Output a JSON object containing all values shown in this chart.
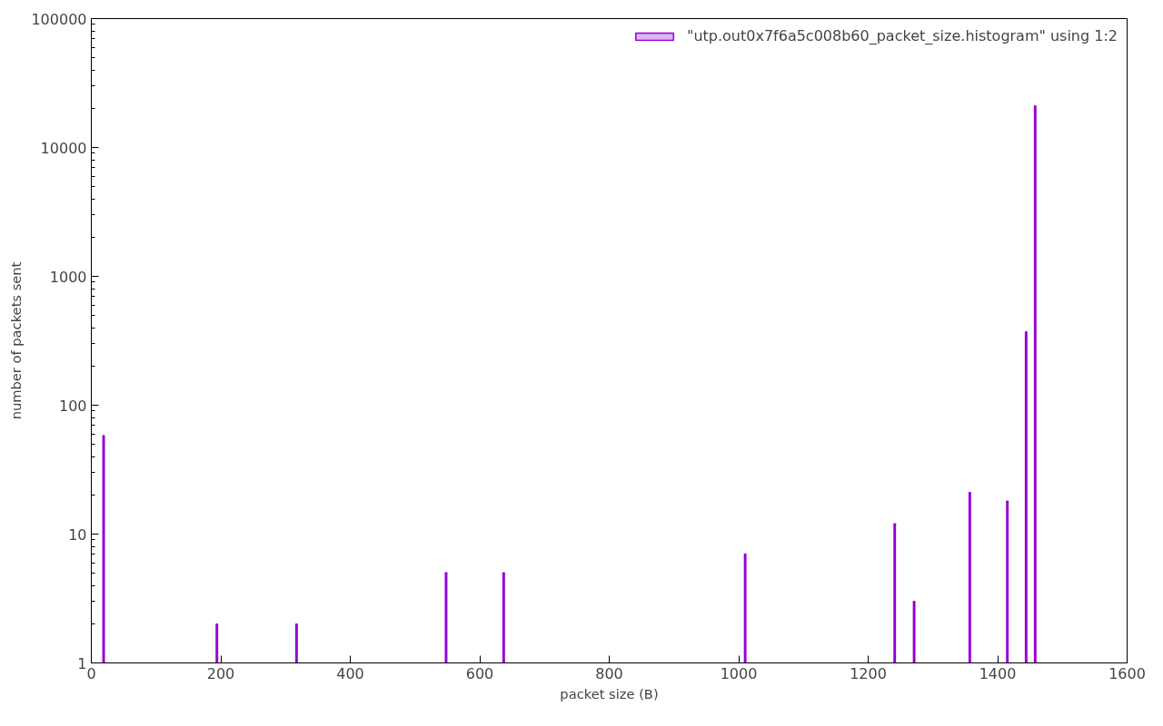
{
  "chart_data": {
    "type": "bar",
    "xlabel": "packet size (B)",
    "ylabel": "number of packets sent",
    "x": [
      19,
      194,
      317,
      548,
      637,
      1010,
      1241,
      1271,
      1357,
      1415,
      1444,
      1458
    ],
    "series": [
      {
        "name": "\"utp.out0x7f6a5c008b60_packet_size.histogram\" using 1:2",
        "color": "#9400d3",
        "values": [
          58,
          2,
          2,
          5,
          5,
          7,
          12,
          3,
          21,
          18,
          370,
          21000
        ]
      }
    ],
    "log": "y",
    "xlim": [
      0,
      1600
    ],
    "xticks": [
      0,
      200,
      400,
      600,
      800,
      1000,
      1200,
      1400,
      1600
    ],
    "ylim": [
      1,
      100000
    ],
    "yticks": [
      1,
      10,
      100,
      1000,
      10000,
      100000
    ],
    "grid": false,
    "legend": "top right"
  }
}
